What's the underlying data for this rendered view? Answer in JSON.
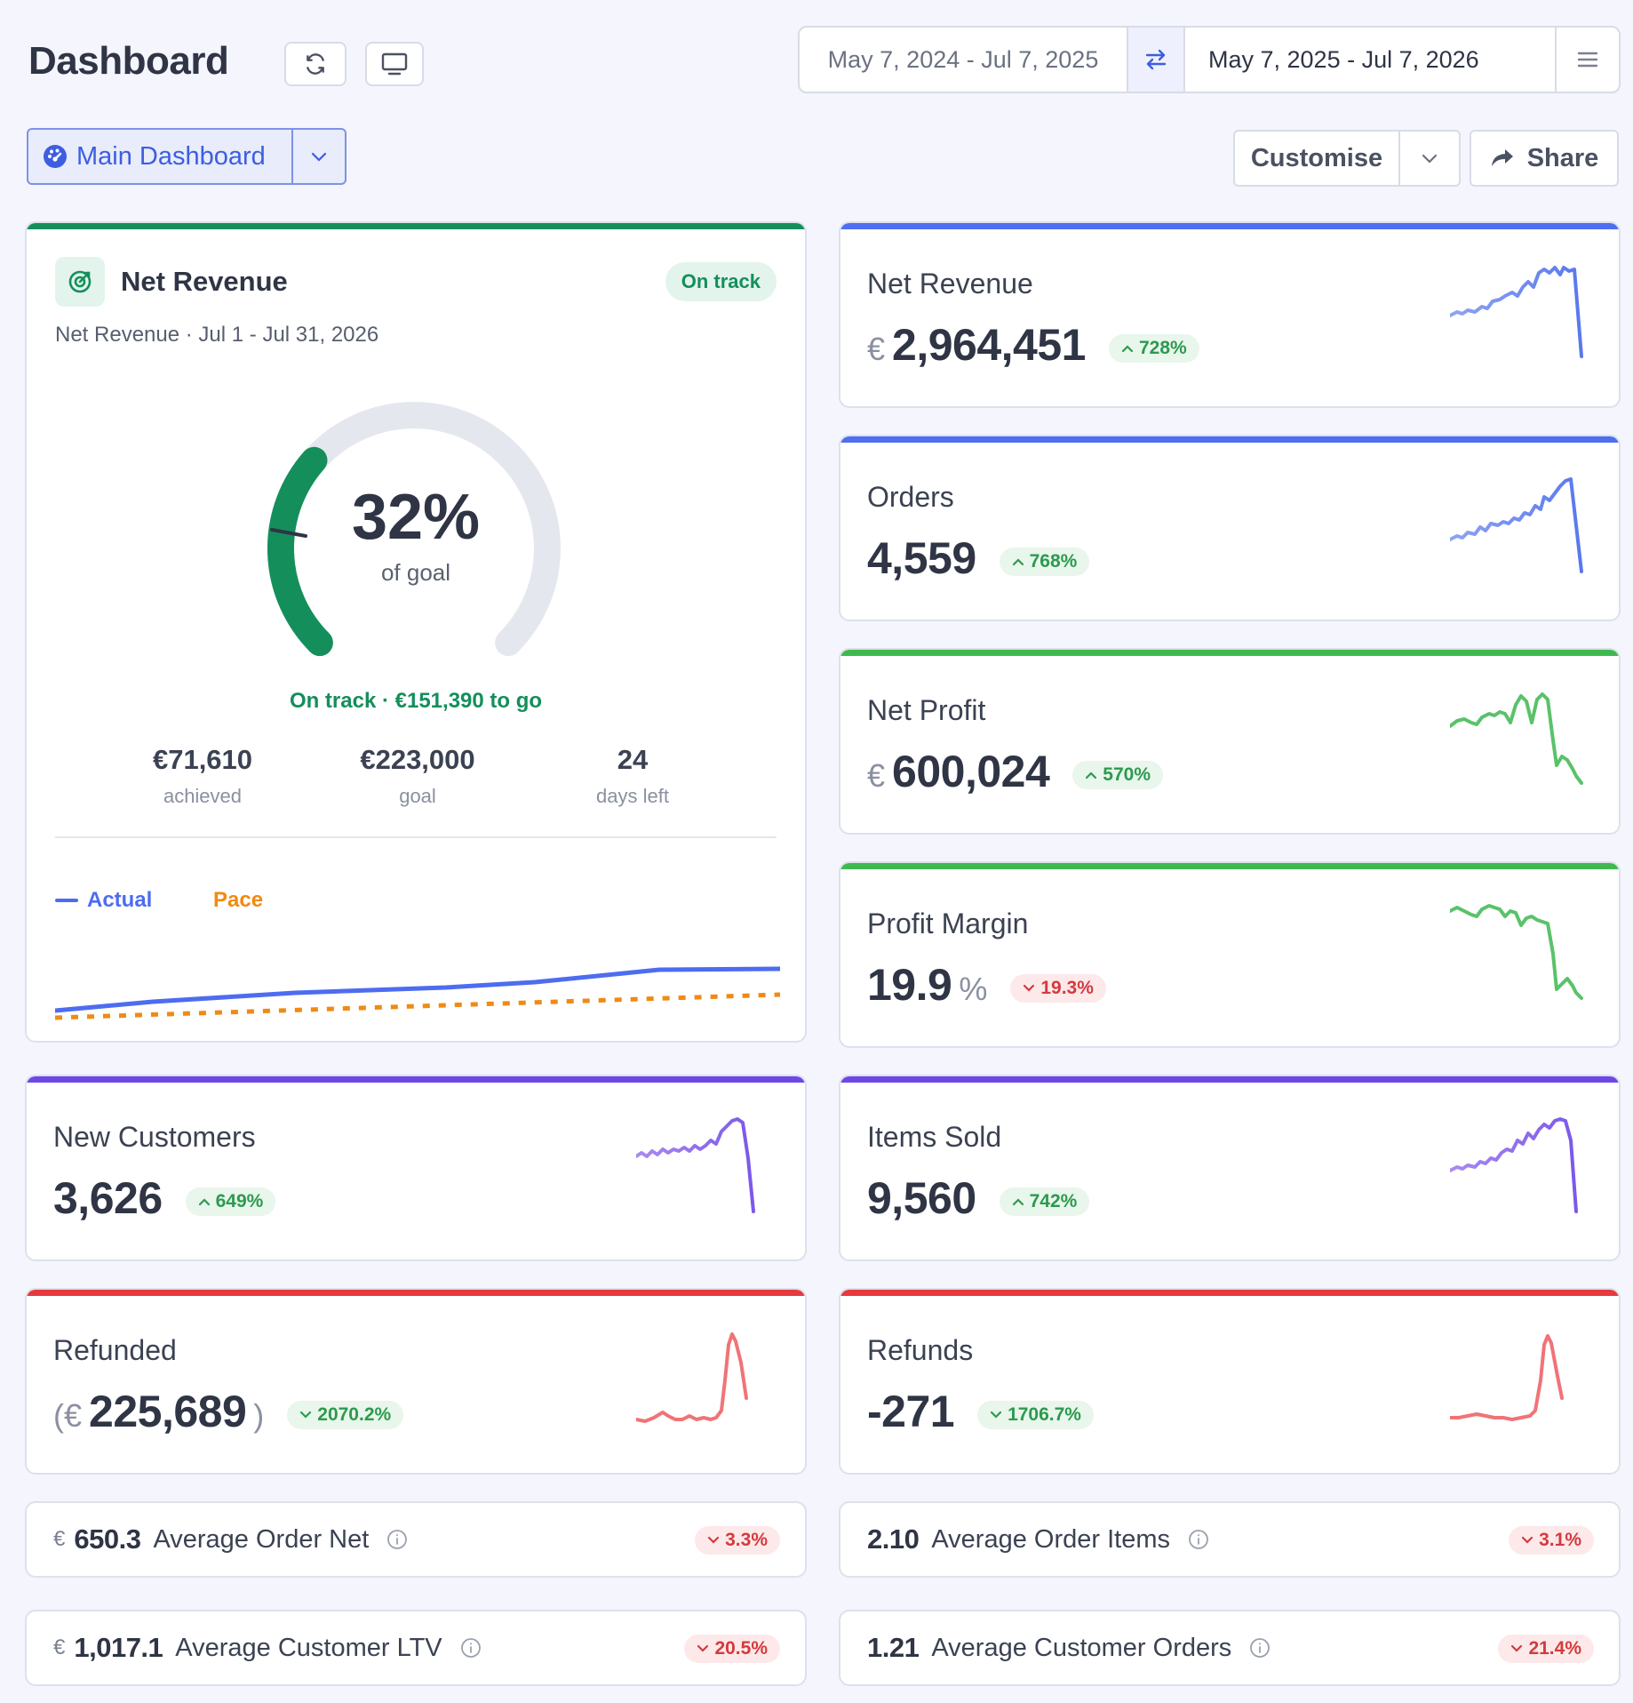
{
  "header": {
    "title": "Dashboard",
    "range_previous": "May 7, 2024 - Jul 7, 2025",
    "range_current": "May 7, 2025 - Jul 7, 2026"
  },
  "toolbar": {
    "dashboard_select": "Main Dashboard",
    "customise": "Customise",
    "share": "Share"
  },
  "goal": {
    "title": "Net Revenue",
    "status_pill": "On track",
    "subtitle": "Net Revenue · Jul 1 - Jul 31, 2026",
    "percent": "32%",
    "percent_value": 32,
    "of_goal": "of goal",
    "status_line": "On track · €151,390 to go",
    "achieved_value": "€71,610",
    "achieved_label": "achieved",
    "goal_value": "€223,000",
    "goal_label": "goal",
    "days_value": "24",
    "days_label": "days left",
    "legend_actual": "Actual",
    "legend_pace": "Pace"
  },
  "metrics": {
    "net_revenue": {
      "title": "Net Revenue",
      "currency": "€",
      "value": "2,964,451",
      "change": "728%",
      "direction": "up",
      "color": "#4f6ef0"
    },
    "orders": {
      "title": "Orders",
      "value": "4,559",
      "change": "768%",
      "direction": "up",
      "color": "#4f6ef0"
    },
    "net_profit": {
      "title": "Net Profit",
      "currency": "€",
      "value": "600,024",
      "change": "570%",
      "direction": "up",
      "color": "#3fb94f"
    },
    "profit_margin": {
      "title": "Profit Margin",
      "value": "19.9",
      "unit": "%",
      "change": "19.3%",
      "direction": "down",
      "color": "#3fb94f"
    },
    "new_customers": {
      "title": "New Customers",
      "value": "3,626",
      "change": "649%",
      "direction": "up",
      "color": "#6e47e6"
    },
    "items_sold": {
      "title": "Items Sold",
      "value": "9,560",
      "change": "742%",
      "direction": "up",
      "color": "#6e47e6"
    },
    "refunded": {
      "title": "Refunded",
      "open": "(€",
      "value": "225,689",
      "close": ")",
      "change": "2070.2%",
      "direction": "down-good",
      "color": "#e5393e"
    },
    "refunds": {
      "title": "Refunds",
      "value": "-271",
      "change": "1706.7%",
      "direction": "down-good",
      "color": "#e5393e"
    }
  },
  "mini": {
    "aon": {
      "currency": "€",
      "value": "650.3",
      "label": "Average Order Net",
      "change": "3.3%"
    },
    "aoi": {
      "value": "2.10",
      "label": "Average Order Items",
      "change": "3.1%"
    },
    "ltv": {
      "currency": "€",
      "value": "1,017.1",
      "label": "Average Customer LTV",
      "change": "20.5%"
    },
    "aco": {
      "value": "1.21",
      "label": "Average Customer Orders",
      "change": "21.4%"
    }
  },
  "colors": {
    "accent": "#3d5ee0",
    "goal_green": "#148f5c",
    "pace_orange": "#f08a12",
    "actual_blue": "#4d6cf0"
  }
}
